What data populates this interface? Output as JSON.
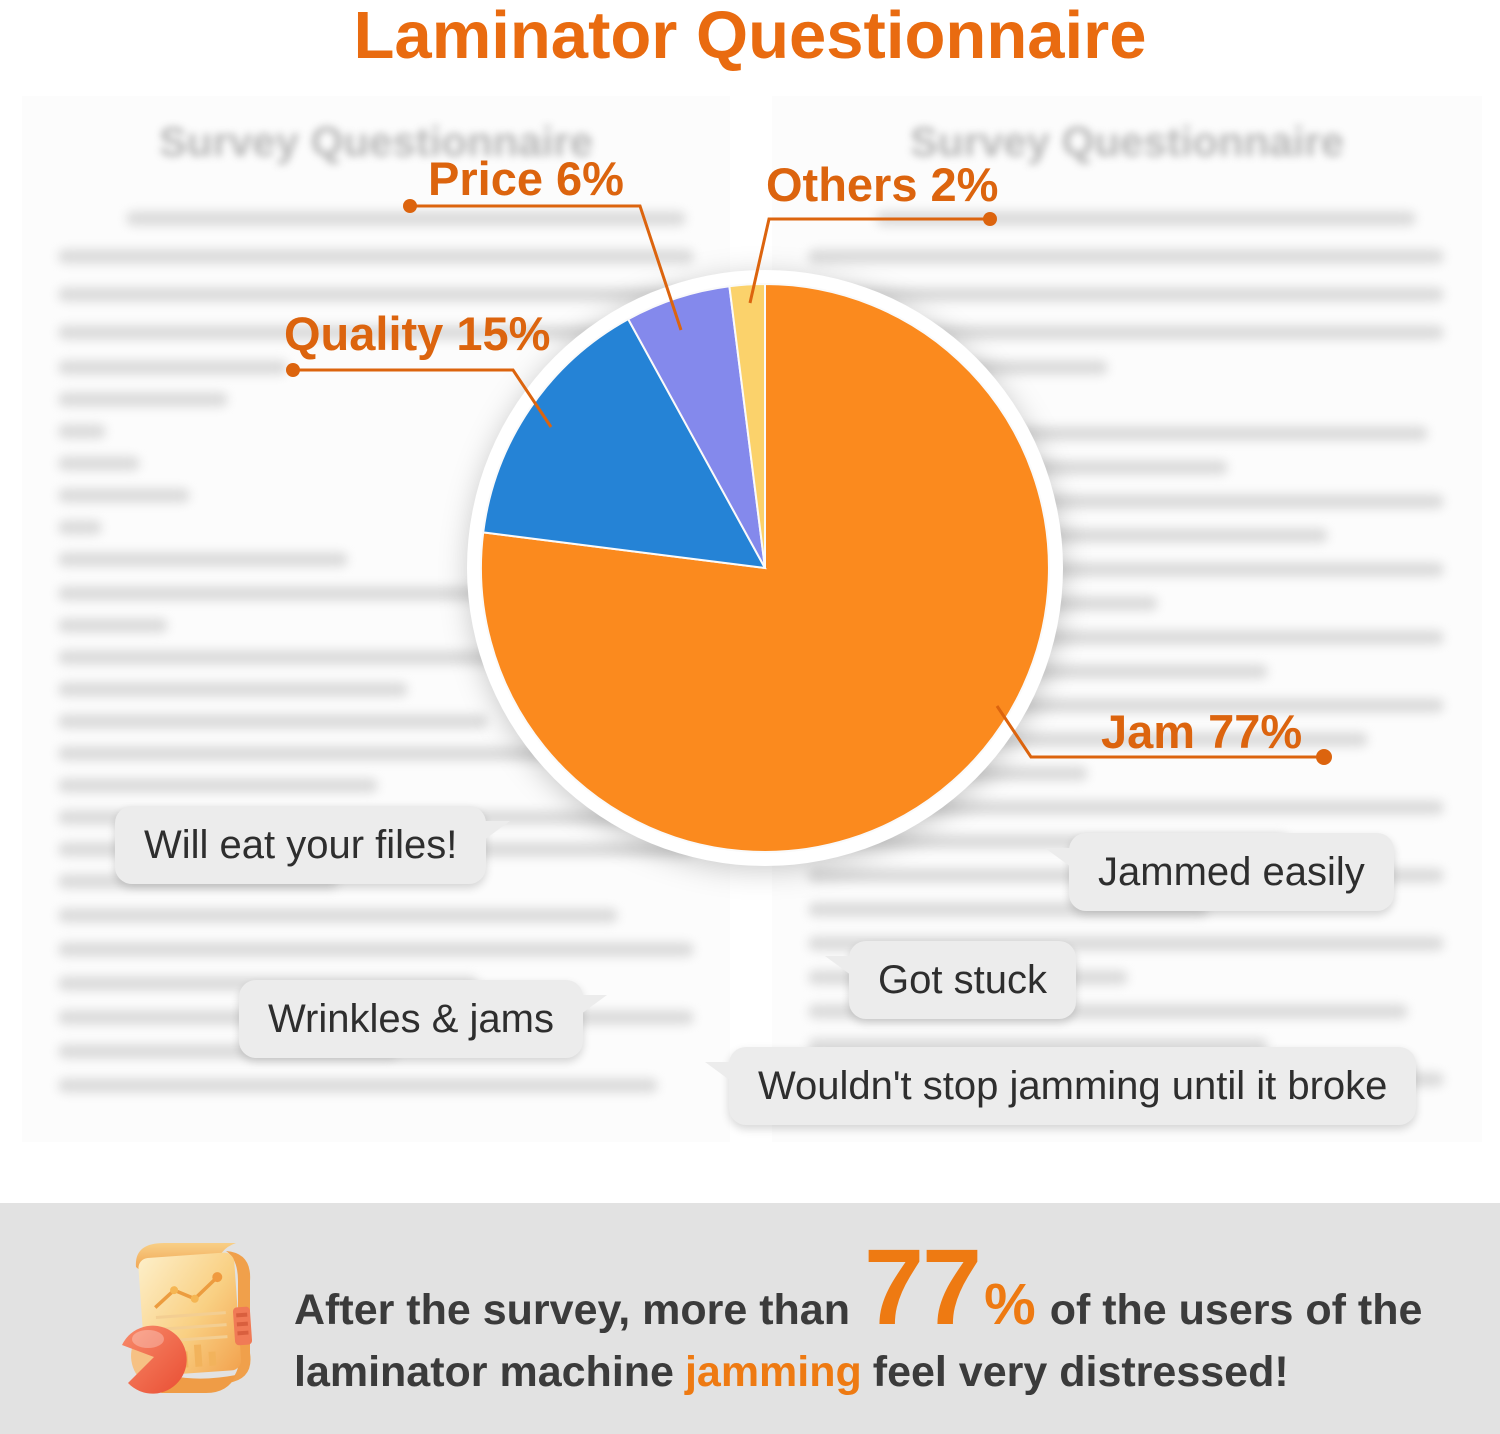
{
  "title": "Laminator Questionnaire",
  "colors": {
    "title_orange": "#E96B10",
    "label_orange": "#DC640E",
    "banner_bg": "#E2E2E2",
    "bubble_bg": "#ECECEC"
  },
  "background_pages": {
    "heading": "Survey Questionnaire"
  },
  "chart_data": {
    "type": "pie",
    "title": "Laminator Questionnaire",
    "units": "%",
    "legend_position": "callout-labels",
    "start_angle_deg": 0,
    "direction": "clockwise",
    "slices": [
      {
        "label": "Jam",
        "value": 77,
        "display": "Jam 77%",
        "color": "#FB8A1E"
      },
      {
        "label": "Quality",
        "value": 15,
        "display": "Quality 15%",
        "color": "#2583D6"
      },
      {
        "label": "Price",
        "value": 6,
        "display": "Price 6%",
        "color": "#8489EC"
      },
      {
        "label": "Others",
        "value": 2,
        "display": "Others 2%",
        "color": "#FBD26B"
      }
    ]
  },
  "quotes": [
    "Will eat your files!",
    "Wrinkles & jams",
    "Jammed easily",
    "Got stuck",
    "Wouldn't stop jamming until it broke"
  ],
  "banner": {
    "line1_prefix": "After the survey, more than",
    "stat_number": "77",
    "stat_percent": "%",
    "line1_suffix": "of the users of the",
    "line2_prefix": "laminator machine",
    "line2_highlight": "jamming",
    "line2_suffix": "feel very distressed!"
  }
}
